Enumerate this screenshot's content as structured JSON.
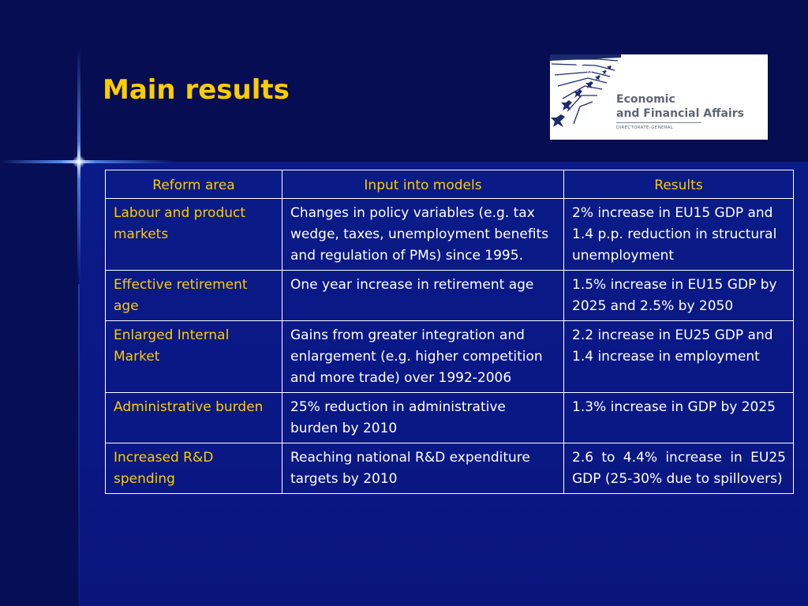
{
  "slide": {
    "title": "Main results"
  },
  "logo": {
    "line1": "Economic",
    "line2": "and Financial Affairs",
    "line3": "DIRECTORATE-GENERAL"
  },
  "table": {
    "headers": [
      "Reform area",
      "Input into models",
      "Results"
    ],
    "rows": [
      {
        "area": "Labour and product markets",
        "input": "Changes in policy variables (e.g. tax wedge, taxes, unemployment benefits and regulation of PMs) since 1995.",
        "result": "2% increase in EU15 GDP and 1.4 p.p. reduction in structural unemployment"
      },
      {
        "area": "Effective retirement age",
        "input": "One year increase in retirement age",
        "result": "1.5% increase in EU15 GDP by 2025 and 2.5% by 2050"
      },
      {
        "area": "Enlarged Internal Market",
        "input": "Gains from greater integration and enlargement (e.g. higher competition and more trade) over 1992-2006",
        "result": "2.2 increase in EU25 GDP and 1.4 increase in employment"
      },
      {
        "area": "Administrative burden",
        "input": "25% reduction in administrative burden by 2010",
        "result": "1.3% increase in GDP by 2025"
      },
      {
        "area": "Increased R&D spending",
        "input": "Reaching national R&D expenditure targets by 2010",
        "result": "2.6 to 4.4% increase in EU25 GDP (25-30% due to spillovers)"
      }
    ]
  },
  "colors": {
    "background": "#07105a",
    "title": "#ffcc00",
    "area_text": "#ffcc00",
    "body_text": "#ffffff",
    "logo_navy": "#1c2a6e",
    "logo_text": "#5d6675"
  },
  "icons": {
    "logo": "eu-stars-logo-icon",
    "flare": "light-flare-icon"
  }
}
